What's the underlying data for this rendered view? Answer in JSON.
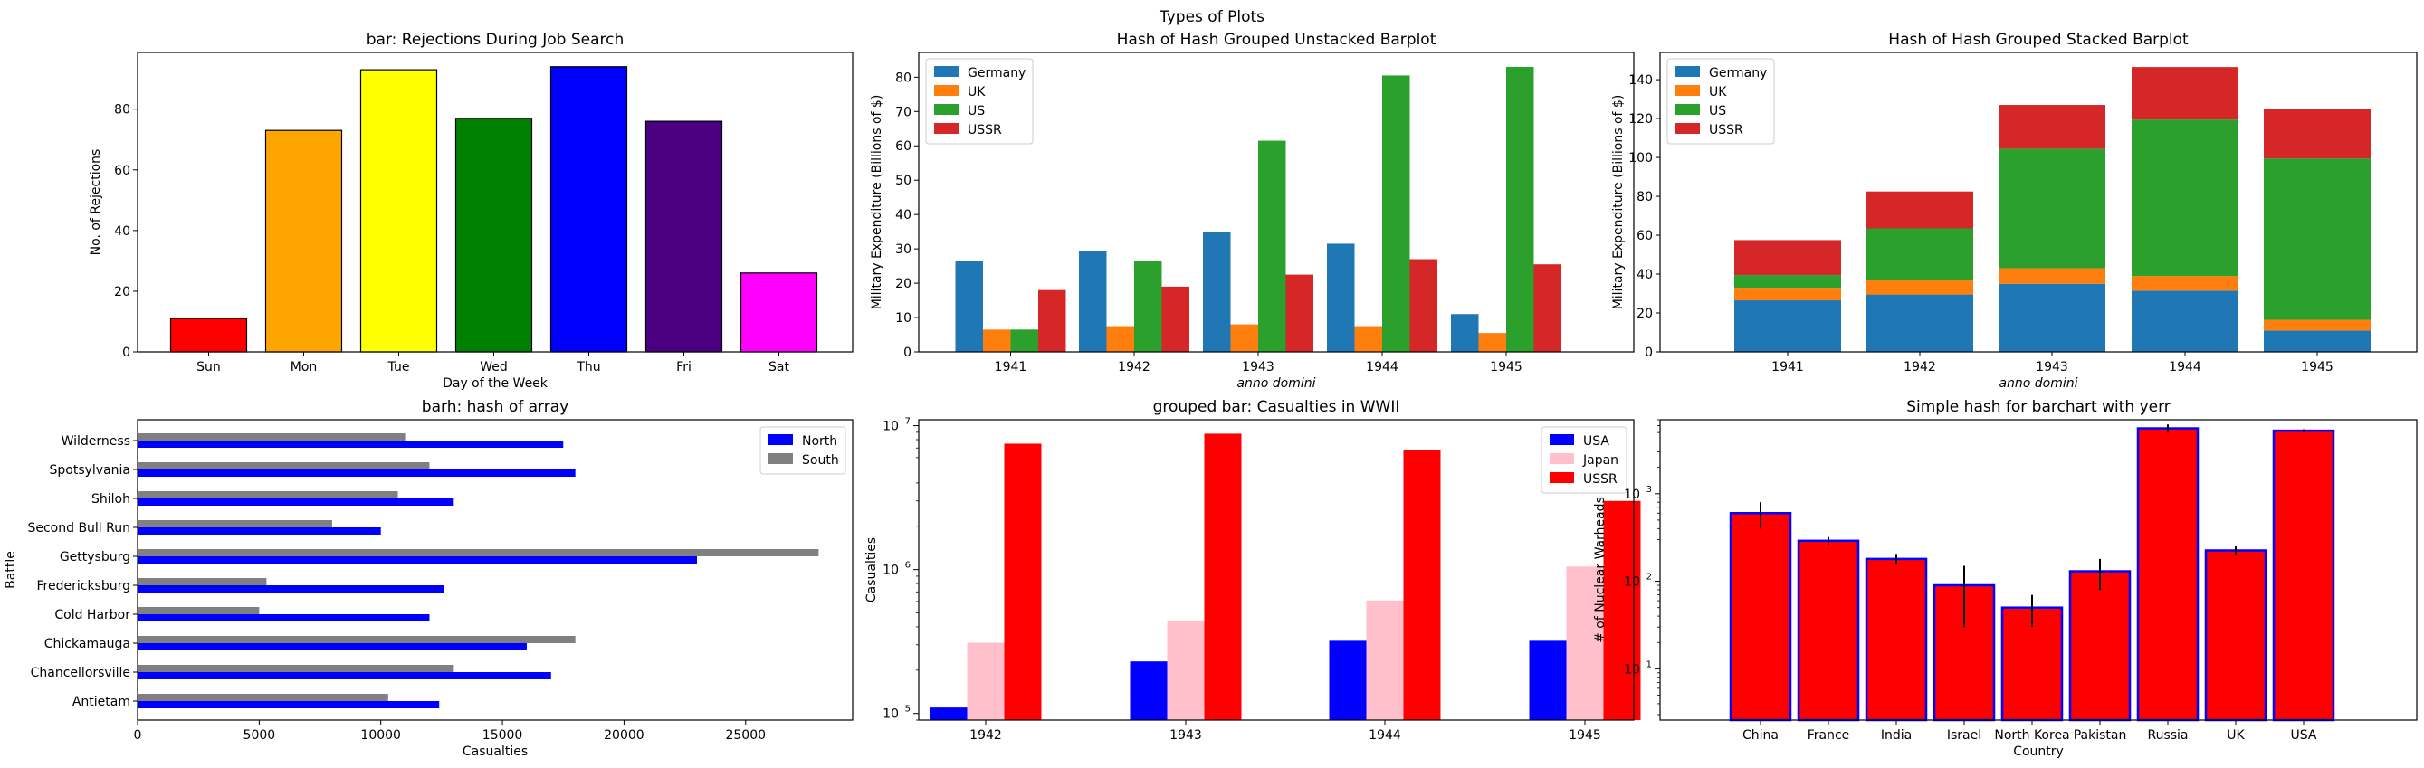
{
  "figure_title": "Types of Plots",
  "chart_data": [
    {
      "id": "rejections",
      "type": "bar",
      "title": "bar: Rejections During Job Search",
      "xlabel": "Day of the Week",
      "ylabel": "No. of Rejections",
      "categories": [
        "Sun",
        "Mon",
        "Tue",
        "Wed",
        "Thu",
        "Fri",
        "Sat"
      ],
      "values": [
        11,
        73,
        93,
        77,
        94,
        76,
        26
      ],
      "colors": [
        "#ff0000",
        "#ffa500",
        "#ffff00",
        "#008000",
        "#0000ff",
        "#4b0082",
        "#ff00ff"
      ],
      "edgecolor": "#000000",
      "ylim": [
        0,
        98.7
      ],
      "yticks": [
        0,
        20,
        40,
        60,
        80
      ]
    },
    {
      "id": "unstacked",
      "type": "bar",
      "title": "Hash of Hash Grouped Unstacked Barplot",
      "xlabel": "anno domini",
      "ylabel": "Military Expenditure (Billions of $)",
      "categories": [
        "1941",
        "1942",
        "1943",
        "1944",
        "1945"
      ],
      "series": [
        {
          "name": "Germany",
          "color": "#1f77b4",
          "values": [
            26.5,
            29.5,
            35,
            31.5,
            11
          ]
        },
        {
          "name": "UK",
          "color": "#ff7f0e",
          "values": [
            6.5,
            7.5,
            8,
            7.5,
            5.5
          ]
        },
        {
          "name": "US",
          "color": "#2ca02c",
          "values": [
            6.5,
            26.5,
            61.5,
            80.5,
            83
          ]
        },
        {
          "name": "USSR",
          "color": "#d62728",
          "values": [
            18,
            19,
            22.5,
            27,
            25.5
          ]
        }
      ],
      "ylim": [
        0,
        87.2
      ],
      "yticks": [
        0,
        10,
        20,
        30,
        40,
        50,
        60,
        70,
        80
      ],
      "legend": "upper-left"
    },
    {
      "id": "stacked",
      "type": "bar",
      "stacked": true,
      "title": "Hash of Hash Grouped Stacked Barplot",
      "xlabel": "anno domini",
      "ylabel": "Military Expenditure (Billions of $)",
      "categories": [
        "1941",
        "1942",
        "1943",
        "1944",
        "1945"
      ],
      "series": [
        {
          "name": "Germany",
          "color": "#1f77b4",
          "values": [
            26.5,
            29.5,
            35,
            31.5,
            11
          ]
        },
        {
          "name": "UK",
          "color": "#ff7f0e",
          "values": [
            6.5,
            7.5,
            8,
            7.5,
            5.5
          ]
        },
        {
          "name": "US",
          "color": "#2ca02c",
          "values": [
            6.5,
            26.5,
            61.5,
            80.5,
            83
          ]
        },
        {
          "name": "USSR",
          "color": "#d62728",
          "values": [
            18,
            19,
            22.5,
            27,
            25.5
          ]
        }
      ],
      "ylim": [
        0,
        154
      ],
      "yticks": [
        0,
        20,
        40,
        60,
        80,
        100,
        120,
        140
      ],
      "legend": "upper-left"
    },
    {
      "id": "battles",
      "type": "barh",
      "title": "barh: hash of array",
      "xlabel": "Casualties",
      "ylabel": "Battle",
      "categories": [
        "Antietam",
        "Chancellorsville",
        "Chickamauga",
        "Cold Harbor",
        "Fredericksburg",
        "Gettysburg",
        "Second Bull Run",
        "Shiloh",
        "Spotsylvania",
        "Wilderness"
      ],
      "series": [
        {
          "name": "North",
          "color": "#0000ff",
          "values": [
            12400,
            17000,
            16000,
            12000,
            12600,
            23000,
            10000,
            13000,
            18000,
            17500
          ]
        },
        {
          "name": "South",
          "color": "#808080",
          "values": [
            10300,
            13000,
            18000,
            5000,
            5300,
            28000,
            8000,
            10700,
            12000,
            11000
          ]
        }
      ],
      "xlim": [
        0,
        29400
      ],
      "xticks": [
        0,
        5000,
        10000,
        15000,
        20000,
        25000
      ],
      "legend": "upper-right"
    },
    {
      "id": "casualties",
      "type": "bar",
      "title": "grouped bar: Casualties in WWII",
      "ylabel": "Casualties",
      "yscale": "log",
      "categories": [
        "1942",
        "1943",
        "1944",
        "1945"
      ],
      "series": [
        {
          "name": "USA",
          "color": "#0000ff",
          "values": [
            110000,
            230000,
            320000,
            320000
          ]
        },
        {
          "name": "Japan",
          "color": "#ffc0cb",
          "values": [
            310000,
            440000,
            610000,
            1050000
          ]
        },
        {
          "name": "USSR",
          "color": "#ff0000",
          "values": [
            7500000,
            8800000,
            6800000,
            3000000
          ]
        }
      ],
      "ylim": [
        90000,
        11000000
      ],
      "yticks": [
        {
          "value": 100000,
          "base": "10",
          "exp": "5"
        },
        {
          "value": 1000000,
          "base": "10",
          "exp": "6"
        },
        {
          "value": 10000000,
          "base": "10",
          "exp": "7"
        }
      ],
      "legend": "upper-right"
    },
    {
      "id": "warheads",
      "type": "bar",
      "title": "Simple hash for barchart with yerr",
      "xlabel": "Country",
      "ylabel": "# of Nuclear Warheads",
      "yscale": "log",
      "categories": [
        "China",
        "France",
        "India",
        "Israel",
        "North Korea",
        "Pakistan",
        "Russia",
        "UK",
        "USA"
      ],
      "values": [
        600,
        290,
        180,
        90,
        50,
        130,
        5580,
        225,
        5250
      ],
      "yerr": [
        200,
        30,
        25,
        60,
        20,
        50,
        600,
        25,
        200
      ],
      "bar_color": "#ff0000",
      "edge_color": "#0000ff",
      "ylim": [
        2.6,
        7000
      ],
      "yticks": [
        {
          "value": 10,
          "base": "10",
          "exp": "1"
        },
        {
          "value": 100,
          "base": "10",
          "exp": "2"
        },
        {
          "value": 1000,
          "base": "10",
          "exp": "3"
        }
      ]
    }
  ]
}
